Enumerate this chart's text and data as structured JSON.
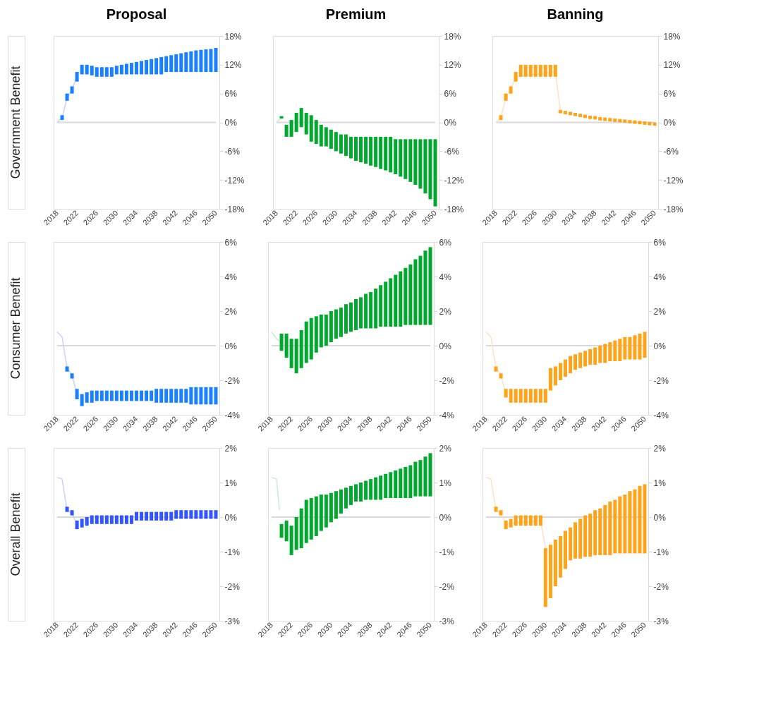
{
  "chart_data": [
    {
      "type": "bar",
      "title": "Proposal",
      "ylabel": "Government Benefit",
      "color": "#1a80ff",
      "x": [
        2019,
        2020,
        2021,
        2022,
        2023,
        2024,
        2025,
        2026,
        2027,
        2028,
        2029,
        2030,
        2031,
        2032,
        2033,
        2034,
        2035,
        2036,
        2037,
        2038,
        2039,
        2040,
        2041,
        2042,
        2043,
        2044,
        2045,
        2046,
        2047,
        2048,
        2049,
        2050
      ],
      "base": [
        0.5,
        4.5,
        6,
        8.5,
        10,
        10,
        9.8,
        9.5,
        9.5,
        9.5,
        9.5,
        10,
        10,
        10,
        10,
        10,
        10,
        10,
        10,
        10,
        10,
        10.5,
        10.5,
        10.5,
        10.5,
        10.5,
        10.5,
        10.5,
        10.5,
        10.5,
        10.5,
        10.5
      ],
      "values": [
        1,
        1.5,
        1.5,
        2,
        2,
        2,
        2,
        2,
        2,
        2,
        2,
        1.8,
        2,
        2.2,
        2.4,
        2.6,
        2.8,
        3,
        3.2,
        3.4,
        3.6,
        3.3,
        3.5,
        3.7,
        3.9,
        4.1,
        4.3,
        4.5,
        4.6,
        4.7,
        4.8,
        5
      ],
      "series": [
        {
          "type": "line",
          "color": "#c8d2ff",
          "x": [
            2018,
            2019,
            2020,
            2021,
            2022
          ],
          "values": [
            0,
            1,
            5,
            7,
            9.5
          ]
        }
      ],
      "xlim": [
        2018,
        2050
      ],
      "xticks": [
        2018,
        2022,
        2026,
        2030,
        2034,
        2038,
        2042,
        2046,
        2050
      ],
      "ylim": [
        -18,
        18
      ],
      "yticks": [
        {
          "value": -18,
          "label": "-18%"
        },
        {
          "value": -12,
          "label": "-12%"
        },
        {
          "value": -6,
          "label": "-6%"
        },
        {
          "value": 0,
          "label": "0%"
        },
        {
          "value": 6,
          "label": "6%"
        },
        {
          "value": 12,
          "label": "12%"
        },
        {
          "value": 18,
          "label": "18%"
        }
      ],
      "ref_lines": [
        {
          "axis": "y",
          "value": 0,
          "color": "#d9d9d9"
        }
      ]
    },
    {
      "type": "bar",
      "title": "Premium",
      "color": "#00a82d",
      "x": [
        2019,
        2020,
        2021,
        2022,
        2023,
        2024,
        2025,
        2026,
        2027,
        2028,
        2029,
        2030,
        2031,
        2032,
        2033,
        2034,
        2035,
        2036,
        2037,
        2038,
        2039,
        2040,
        2041,
        2042,
        2043,
        2044,
        2045,
        2046,
        2047,
        2048,
        2049,
        2050
      ],
      "base": [
        0.8,
        -3,
        -3,
        -2,
        -1,
        -2.5,
        -4,
        -4.5,
        -5,
        -5,
        -5.5,
        -6,
        -6.5,
        -7,
        -7.5,
        -8,
        -8.3,
        -8.6,
        -9,
        -9.3,
        -9.7,
        -10,
        -10.4,
        -10.8,
        -11.3,
        -11.8,
        -12.4,
        -13,
        -13.8,
        -14.8,
        -16,
        -17.5
      ],
      "values": [
        0.5,
        2.5,
        3.5,
        4,
        4,
        4.5,
        5.5,
        5,
        4.5,
        4,
        4,
        4,
        4,
        4.5,
        4.5,
        5,
        5.3,
        5.6,
        6,
        6.3,
        6.7,
        7,
        7.4,
        7.3,
        7.8,
        8.3,
        8.9,
        9.5,
        10.3,
        11.3,
        12.5,
        14
      ],
      "series": [
        {
          "type": "line",
          "color": "#c8ecd0",
          "x": [
            2018,
            2019
          ],
          "values": [
            0,
            1
          ]
        }
      ],
      "xlim": [
        2018,
        2050
      ],
      "xticks": [
        2018,
        2022,
        2026,
        2030,
        2034,
        2038,
        2042,
        2046,
        2050
      ],
      "ylim": [
        -18,
        18
      ],
      "yticks": [
        {
          "value": -18,
          "label": "-18%"
        },
        {
          "value": -12,
          "label": "-12%"
        },
        {
          "value": -6,
          "label": "-6%"
        },
        {
          "value": 0,
          "label": "0%"
        },
        {
          "value": 6,
          "label": "6%"
        },
        {
          "value": 12,
          "label": "12%"
        },
        {
          "value": 18,
          "label": "18%"
        }
      ],
      "ref_lines": [
        {
          "axis": "y",
          "value": 0,
          "color": "#d9d9d9"
        }
      ]
    },
    {
      "type": "bar",
      "title": "Banning",
      "color": "#ffa31a",
      "x": [
        2019,
        2020,
        2021,
        2022,
        2023,
        2024,
        2025,
        2026,
        2027,
        2028,
        2029,
        2030,
        2031,
        2032,
        2033,
        2034,
        2035,
        2036,
        2037,
        2038,
        2039,
        2040,
        2041,
        2042,
        2043,
        2044,
        2045,
        2046,
        2047,
        2048,
        2049,
        2050
      ],
      "base": [
        0.5,
        4.5,
        6,
        8.5,
        9.5,
        9.5,
        9.5,
        9.5,
        9.5,
        9.5,
        9.5,
        9.5,
        1.9,
        1.7,
        1.5,
        1.3,
        1.1,
        0.9,
        0.7,
        0.6,
        0.4,
        0.3,
        0.2,
        0.1,
        0,
        -0.1,
        -0.2,
        -0.3,
        -0.4,
        -0.5,
        -0.6,
        -0.7
      ],
      "values": [
        1,
        1.5,
        1.5,
        2,
        2.5,
        2.5,
        2.5,
        2.5,
        2.5,
        2.5,
        2.5,
        2.5,
        0.7,
        0.7,
        0.7,
        0.7,
        0.7,
        0.7,
        0.7,
        0.7,
        0.7,
        0.7,
        0.7,
        0.7,
        0.7,
        0.7,
        0.7,
        0.7,
        0.7,
        0.7,
        0.7,
        0.7
      ],
      "series": [
        {
          "type": "line",
          "color": "#ffe2c4",
          "x": [
            2018,
            2019,
            2020,
            2021,
            2022,
            2030,
            2031
          ],
          "values": [
            0,
            1,
            5,
            7,
            9.5,
            10.5,
            2.3
          ]
        }
      ],
      "xlim": [
        2018,
        2050
      ],
      "xticks": [
        2018,
        2022,
        2026,
        2030,
        2034,
        2038,
        2042,
        2046,
        2050
      ],
      "ylim": [
        -18,
        18
      ],
      "yticks": [
        {
          "value": -18,
          "label": "-18%"
        },
        {
          "value": -12,
          "label": "-12%"
        },
        {
          "value": -6,
          "label": "-6%"
        },
        {
          "value": 0,
          "label": "0%"
        },
        {
          "value": 6,
          "label": "6%"
        },
        {
          "value": 12,
          "label": "12%"
        },
        {
          "value": 18,
          "label": "18%"
        }
      ],
      "ref_lines": [
        {
          "axis": "y",
          "value": 0,
          "color": "#d9d9d9"
        }
      ]
    },
    {
      "type": "bar",
      "ylabel": "Consumer Benefit",
      "color": "#1a80ff",
      "x": [
        2020,
        2021,
        2022,
        2023,
        2024,
        2025,
        2026,
        2027,
        2028,
        2029,
        2030,
        2031,
        2032,
        2033,
        2034,
        2035,
        2036,
        2037,
        2038,
        2039,
        2040,
        2041,
        2042,
        2043,
        2044,
        2045,
        2046,
        2047,
        2048,
        2049,
        2050
      ],
      "base": [
        -1.5,
        -1.9,
        -3.1,
        -3.5,
        -3.3,
        -3.3,
        -3.2,
        -3.2,
        -3.2,
        -3.2,
        -3.2,
        -3.2,
        -3.2,
        -3.2,
        -3.2,
        -3.2,
        -3.2,
        -3.2,
        -3.3,
        -3.3,
        -3.3,
        -3.3,
        -3.3,
        -3.3,
        -3.3,
        -3.4,
        -3.4,
        -3.4,
        -3.4,
        -3.4,
        -3.4
      ],
      "values": [
        0.3,
        0.3,
        0.6,
        0.7,
        0.6,
        0.7,
        0.6,
        0.6,
        0.6,
        0.6,
        0.6,
        0.6,
        0.6,
        0.6,
        0.6,
        0.6,
        0.6,
        0.6,
        0.8,
        0.8,
        0.8,
        0.8,
        0.8,
        0.8,
        0.8,
        1,
        1,
        1,
        1,
        1,
        1
      ],
      "series": [
        {
          "type": "line",
          "color": "#c8d2ff",
          "x": [
            2018,
            2019,
            2020,
            2021,
            2022
          ],
          "values": [
            0.8,
            0.5,
            -1.3,
            -1.7,
            -2.8
          ]
        }
      ],
      "xlim": [
        2018,
        2050
      ],
      "xticks": [
        2018,
        2022,
        2026,
        2030,
        2034,
        2038,
        2042,
        2046,
        2050
      ],
      "ylim": [
        -4,
        6
      ],
      "yticks": [
        {
          "value": -4,
          "label": "-4%"
        },
        {
          "value": -2,
          "label": "-2%"
        },
        {
          "value": 0,
          "label": "0%"
        },
        {
          "value": 2,
          "label": "2%"
        },
        {
          "value": 4,
          "label": "4%"
        },
        {
          "value": 6,
          "label": "6%"
        }
      ],
      "ref_lines": [
        {
          "axis": "y",
          "value": 0,
          "color": "#d9d9d9"
        }
      ]
    },
    {
      "type": "bar",
      "color": "#00a82d",
      "x": [
        2020,
        2021,
        2022,
        2023,
        2024,
        2025,
        2026,
        2027,
        2028,
        2029,
        2030,
        2031,
        2032,
        2033,
        2034,
        2035,
        2036,
        2037,
        2038,
        2039,
        2040,
        2041,
        2042,
        2043,
        2044,
        2045,
        2046,
        2047,
        2048,
        2049,
        2050
      ],
      "base": [
        -0.3,
        -0.7,
        -1.3,
        -1.6,
        -1.3,
        -1,
        -0.8,
        -0.4,
        -0.1,
        0,
        0.2,
        0.4,
        0.5,
        0.7,
        0.8,
        0.9,
        1,
        1,
        1,
        1,
        1.1,
        1.1,
        1.1,
        1.1,
        1.1,
        1.2,
        1.2,
        1.2,
        1.2,
        1.2,
        1.2
      ],
      "values": [
        1,
        1.4,
        1.7,
        2,
        2.2,
        2.4,
        2.4,
        2.1,
        1.9,
        1.8,
        1.8,
        1.7,
        1.7,
        1.7,
        1.7,
        1.8,
        1.8,
        2,
        2.1,
        2.3,
        2.4,
        2.6,
        2.8,
        3,
        3.2,
        3.3,
        3.5,
        3.8,
        4,
        4.3,
        4.5
      ],
      "series": [
        {
          "type": "line",
          "color": "#c8ecd0",
          "x": [
            2018,
            2019,
            2020
          ],
          "values": [
            0.8,
            0.4,
            0.2
          ]
        }
      ],
      "xlim": [
        2018,
        2050
      ],
      "xticks": [
        2018,
        2022,
        2026,
        2030,
        2034,
        2038,
        2042,
        2046,
        2050
      ],
      "ylim": [
        -4,
        6
      ],
      "yticks": [
        {
          "value": -4,
          "label": "-4%"
        },
        {
          "value": -2,
          "label": "-2%"
        },
        {
          "value": 0,
          "label": "0%"
        },
        {
          "value": 2,
          "label": "2%"
        },
        {
          "value": 4,
          "label": "4%"
        },
        {
          "value": 6,
          "label": "6%"
        }
      ],
      "ref_lines": [
        {
          "axis": "y",
          "value": 0,
          "color": "#d9d9d9"
        }
      ]
    },
    {
      "type": "bar",
      "color": "#ffa31a",
      "x": [
        2020,
        2021,
        2022,
        2023,
        2024,
        2025,
        2026,
        2027,
        2028,
        2029,
        2030,
        2031,
        2032,
        2033,
        2034,
        2035,
        2036,
        2037,
        2038,
        2039,
        2040,
        2041,
        2042,
        2043,
        2044,
        2045,
        2046,
        2047,
        2048,
        2049,
        2050
      ],
      "base": [
        -1.5,
        -1.9,
        -3,
        -3.3,
        -3.3,
        -3.3,
        -3.3,
        -3.3,
        -3.3,
        -3.3,
        -3.3,
        -2.6,
        -2.3,
        -2,
        -1.8,
        -1.6,
        -1.4,
        -1.3,
        -1.2,
        -1.1,
        -1.1,
        -1,
        -1,
        -0.9,
        -0.9,
        -0.9,
        -0.8,
        -0.8,
        -0.8,
        -0.8,
        -0.7
      ],
      "values": [
        0.3,
        0.3,
        0.5,
        0.8,
        0.8,
        0.8,
        0.8,
        0.8,
        0.8,
        0.8,
        0.8,
        1.3,
        1.1,
        1,
        1,
        1,
        0.9,
        0.9,
        0.9,
        0.9,
        1,
        1,
        1.1,
        1.1,
        1.2,
        1.3,
        1.3,
        1.3,
        1.4,
        1.5,
        1.5
      ],
      "series": [
        {
          "type": "line",
          "color": "#ffe2c4",
          "x": [
            2018,
            2019,
            2020,
            2021,
            2022
          ],
          "values": [
            0.8,
            0.5,
            -1.3,
            -1.7,
            -2.8
          ]
        }
      ],
      "xlim": [
        2018,
        2050
      ],
      "xticks": [
        2018,
        2022,
        2026,
        2030,
        2034,
        2038,
        2042,
        2046,
        2050
      ],
      "ylim": [
        -4,
        6
      ],
      "yticks": [
        {
          "value": -4,
          "label": "-4%"
        },
        {
          "value": -2,
          "label": "-2%"
        },
        {
          "value": 0,
          "label": "0%"
        },
        {
          "value": 2,
          "label": "2%"
        },
        {
          "value": 4,
          "label": "4%"
        },
        {
          "value": 6,
          "label": "6%"
        }
      ],
      "ref_lines": [
        {
          "axis": "y",
          "value": 0,
          "color": "#d9d9d9"
        }
      ]
    },
    {
      "type": "bar",
      "ylabel": "Overall Benefit",
      "color": "#3355ff",
      "x": [
        2020,
        2021,
        2022,
        2023,
        2024,
        2025,
        2026,
        2027,
        2028,
        2029,
        2030,
        2031,
        2032,
        2033,
        2034,
        2035,
        2036,
        2037,
        2038,
        2039,
        2040,
        2041,
        2042,
        2043,
        2044,
        2045,
        2046,
        2047,
        2048,
        2049,
        2050
      ],
      "base": [
        0.15,
        0.05,
        -0.35,
        -0.3,
        -0.25,
        -0.2,
        -0.2,
        -0.2,
        -0.2,
        -0.2,
        -0.2,
        -0.2,
        -0.2,
        -0.2,
        -0.1,
        -0.1,
        -0.1,
        -0.1,
        -0.1,
        -0.1,
        -0.1,
        -0.1,
        -0.05,
        -0.05,
        -0.05,
        -0.05,
        -0.05,
        -0.05,
        -0.05,
        -0.05,
        -0.05
      ],
      "values": [
        0.15,
        0.15,
        0.25,
        0.25,
        0.25,
        0.25,
        0.25,
        0.25,
        0.25,
        0.25,
        0.25,
        0.25,
        0.25,
        0.25,
        0.25,
        0.25,
        0.25,
        0.25,
        0.25,
        0.25,
        0.25,
        0.25,
        0.25,
        0.25,
        0.25,
        0.25,
        0.25,
        0.25,
        0.25,
        0.25,
        0.25
      ],
      "series": [
        {
          "type": "line",
          "color": "#c8d2ff",
          "x": [
            2018,
            2019,
            2020,
            2021,
            2022
          ],
          "values": [
            1.15,
            1.1,
            0.2,
            0.1,
            -0.2
          ]
        }
      ],
      "xlim": [
        2018,
        2050
      ],
      "xticks": [
        2018,
        2022,
        2026,
        2030,
        2034,
        2038,
        2042,
        2046,
        2050
      ],
      "ylim": [
        -3,
        2
      ],
      "yticks": [
        {
          "value": -3,
          "label": "-3%"
        },
        {
          "value": -2,
          "label": "-2%"
        },
        {
          "value": -1,
          "label": "-1%"
        },
        {
          "value": 0,
          "label": "0%"
        },
        {
          "value": 1,
          "label": "1%"
        },
        {
          "value": 2,
          "label": "2%"
        }
      ],
      "ref_lines": [
        {
          "axis": "y",
          "value": 0,
          "color": "#d9d9d9"
        }
      ]
    },
    {
      "type": "bar",
      "color": "#00a82d",
      "x": [
        2020,
        2021,
        2022,
        2023,
        2024,
        2025,
        2026,
        2027,
        2028,
        2029,
        2030,
        2031,
        2032,
        2033,
        2034,
        2035,
        2036,
        2037,
        2038,
        2039,
        2040,
        2041,
        2042,
        2043,
        2044,
        2045,
        2046,
        2047,
        2048,
        2049,
        2050
      ],
      "base": [
        -0.6,
        -0.7,
        -1.1,
        -0.95,
        -0.9,
        -0.75,
        -0.65,
        -0.55,
        -0.4,
        -0.3,
        -0.15,
        -0.05,
        0.1,
        0.25,
        0.35,
        0.45,
        0.45,
        0.5,
        0.5,
        0.5,
        0.5,
        0.55,
        0.55,
        0.55,
        0.55,
        0.55,
        0.55,
        0.6,
        0.6,
        0.6,
        0.6
      ],
      "values": [
        0.4,
        0.6,
        0.85,
        0.95,
        1.15,
        1.25,
        1.2,
        1.15,
        1.05,
        0.95,
        0.85,
        0.8,
        0.7,
        0.6,
        0.55,
        0.5,
        0.55,
        0.55,
        0.6,
        0.65,
        0.7,
        0.7,
        0.75,
        0.8,
        0.85,
        0.9,
        0.95,
        1,
        1.05,
        1.15,
        1.25
      ],
      "series": [
        {
          "type": "line",
          "color": "#c8ecd0",
          "x": [
            2018,
            2019,
            2019.6
          ],
          "values": [
            1.15,
            1.1,
            0.2
          ]
        }
      ],
      "xlim": [
        2018,
        2050
      ],
      "xticks": [
        2018,
        2022,
        2026,
        2030,
        2034,
        2038,
        2042,
        2046,
        2050
      ],
      "ylim": [
        -3,
        2
      ],
      "yticks": [
        {
          "value": -3,
          "label": "-3%"
        },
        {
          "value": -2,
          "label": "-2%"
        },
        {
          "value": -1,
          "label": "-1%"
        },
        {
          "value": 0,
          "label": "0%"
        },
        {
          "value": 1,
          "label": "1%"
        },
        {
          "value": 2,
          "label": "2%"
        }
      ],
      "ref_lines": [
        {
          "axis": "y",
          "value": 0,
          "color": "#d9d9d9"
        }
      ]
    },
    {
      "type": "bar",
      "color": "#ffa31a",
      "x": [
        2020,
        2021,
        2022,
        2023,
        2024,
        2025,
        2026,
        2027,
        2028,
        2029,
        2030,
        2031,
        2032,
        2033,
        2034,
        2035,
        2036,
        2037,
        2038,
        2039,
        2040,
        2041,
        2042,
        2043,
        2044,
        2045,
        2046,
        2047,
        2048,
        2049,
        2050
      ],
      "base": [
        0.15,
        0.05,
        -0.35,
        -0.3,
        -0.25,
        -0.25,
        -0.25,
        -0.25,
        -0.25,
        -0.25,
        -2.6,
        -2.35,
        -2,
        -1.75,
        -1.5,
        -1.25,
        -1.2,
        -1.2,
        -1.15,
        -1.15,
        -1.1,
        -1.1,
        -1.1,
        -1.1,
        -1.05,
        -1.05,
        -1.05,
        -1.05,
        -1.05,
        -1.05,
        -1.05
      ],
      "values": [
        0.15,
        0.15,
        0.25,
        0.25,
        0.3,
        0.3,
        0.3,
        0.3,
        0.3,
        0.3,
        1.7,
        1.55,
        1.35,
        1.2,
        1.1,
        0.95,
        1.05,
        1.15,
        1.2,
        1.25,
        1.3,
        1.35,
        1.45,
        1.55,
        1.55,
        1.65,
        1.7,
        1.8,
        1.85,
        1.95,
        2
      ],
      "series": [
        {
          "type": "line",
          "color": "#ffe2c4",
          "x": [
            2018,
            2019,
            2020,
            2021,
            2022,
            2029,
            2030
          ],
          "values": [
            1.15,
            1.1,
            0.2,
            0.1,
            -0.2,
            -0.1,
            -0.9
          ]
        }
      ],
      "xlim": [
        2018,
        2050
      ],
      "xticks": [
        2018,
        2022,
        2026,
        2030,
        2034,
        2038,
        2042,
        2046,
        2050
      ],
      "ylim": [
        -3,
        2
      ],
      "yticks": [
        {
          "value": -3,
          "label": "-3%"
        },
        {
          "value": -2,
          "label": "-2%"
        },
        {
          "value": -1,
          "label": "-1%"
        },
        {
          "value": 0,
          "label": "0%"
        },
        {
          "value": 1,
          "label": "1%"
        },
        {
          "value": 2,
          "label": "2%"
        }
      ],
      "ref_lines": [
        {
          "axis": "y",
          "value": 0,
          "color": "#d9d9d9"
        }
      ]
    }
  ]
}
